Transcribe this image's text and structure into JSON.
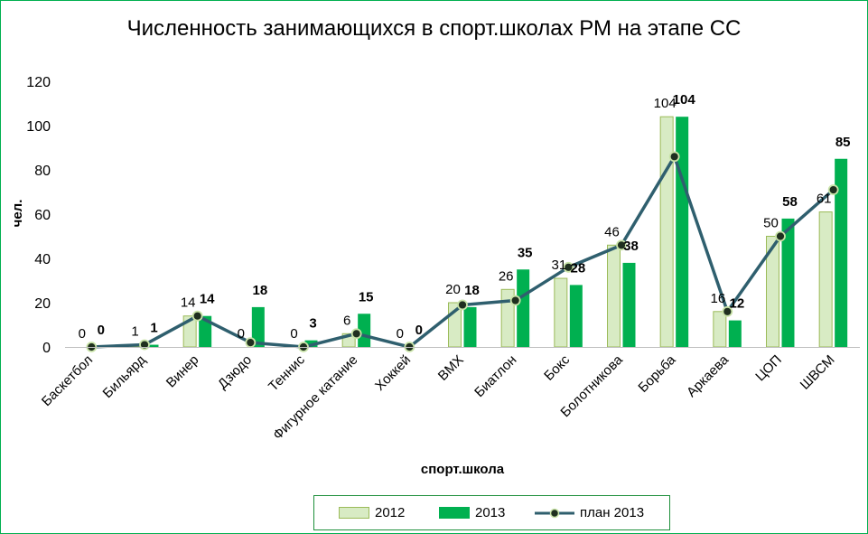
{
  "chart_data": {
    "type": "bar",
    "title": "Численность занимающихся в спорт.школах РМ на этапе СС",
    "xlabel": "спорт.школа",
    "ylabel": "чел.",
    "ylim": [
      0,
      120
    ],
    "yticks": [
      0,
      20,
      40,
      60,
      80,
      100,
      120
    ],
    "grid": false,
    "legend_position": "bottom",
    "categories": [
      "Баскетбол",
      "Бильярд",
      "Винер",
      "Дзюдо",
      "Теннис",
      "Фигурное катание",
      "Хоккей",
      "BMX",
      "Биатлон",
      "Бокс",
      "Болотникова",
      "Борьба",
      "Аркаева",
      "ЦОП",
      "ШВСМ"
    ],
    "series": [
      {
        "name": "2012",
        "kind": "bar",
        "color": "#d8ebc4",
        "values": [
          0,
          1,
          14,
          0,
          0,
          6,
          0,
          20,
          26,
          31,
          46,
          104,
          16,
          50,
          61
        ]
      },
      {
        "name": "2013",
        "kind": "bar",
        "color": "#00b050",
        "values": [
          0,
          1,
          14,
          18,
          3,
          15,
          0,
          18,
          35,
          28,
          38,
          104,
          12,
          58,
          85
        ]
      },
      {
        "name": "план 2013",
        "kind": "line",
        "color": "#2f5f6e",
        "values": [
          0,
          1,
          14,
          2,
          0,
          6,
          0,
          19,
          21,
          36,
          46,
          86,
          16,
          50,
          71
        ]
      }
    ]
  },
  "colors": {
    "border": "#00b050",
    "marker_fill": "#1f2f1f",
    "marker_edge": "#c9e3a8"
  }
}
